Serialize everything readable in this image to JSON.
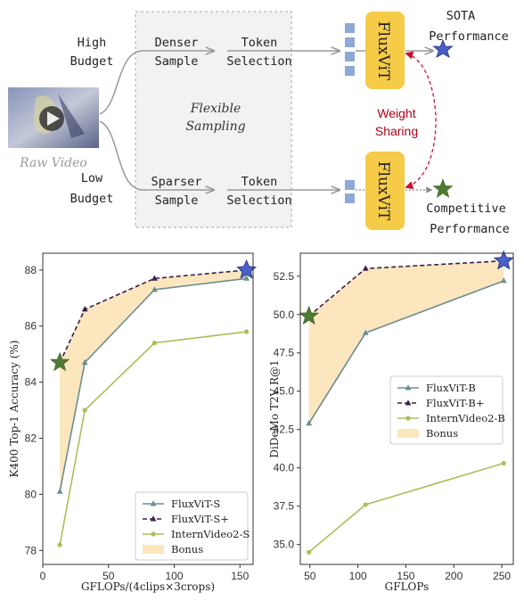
{
  "diagram": {
    "high_budget": [
      "High",
      "Budget"
    ],
    "low_budget": [
      "Low",
      "Budget"
    ],
    "raw_video": "Raw Video",
    "denser_sample": [
      "Denser",
      "Sample"
    ],
    "sparser_sample": [
      "Sparser",
      "Sample"
    ],
    "token_selection": [
      "Token",
      "Selection"
    ],
    "flexible_sampling": [
      "Flexible",
      "Sampling"
    ],
    "model_name": "FluxViT",
    "weight_sharing": [
      "Weight",
      "Sharing"
    ],
    "sota_performance": [
      "SOTA",
      "Performance"
    ],
    "competitive_performance": [
      "Competitive",
      "Performance"
    ],
    "colors": {
      "model_box": "#f5cb47",
      "token": "#8ea9d6",
      "sharing": "#c8102e",
      "sota_star": "#4a5fc8",
      "competitive_star": "#4f7a32"
    }
  },
  "chart_data": [
    {
      "type": "line",
      "xlabel": "GFLOPs/(4clips×3crops)",
      "ylabel": "K400 Top-1 Accuracy (%)",
      "xlim": [
        0,
        160
      ],
      "ylim": [
        77.5,
        88.6
      ],
      "xticks": [
        0,
        50,
        100,
        150
      ],
      "yticks": [
        78,
        80,
        82,
        84,
        86,
        88
      ],
      "legend_position": "bottom-right",
      "series": [
        {
          "name": "FluxViT-S",
          "x": [
            13,
            32,
            85,
            155
          ],
          "y": [
            80.1,
            84.7,
            87.3,
            87.7
          ],
          "color": "#6b8e8e",
          "marker": "triangle",
          "style": "solid"
        },
        {
          "name": "FluxViT-S+",
          "x": [
            13,
            32,
            85,
            155
          ],
          "y": [
            84.7,
            86.6,
            87.7,
            88.0
          ],
          "color": "#3b1f4e",
          "marker": "triangle",
          "style": "dashed"
        },
        {
          "name": "InternVideo2-S",
          "x": [
            13,
            32,
            85,
            155
          ],
          "y": [
            78.2,
            83.0,
            85.4,
            85.8
          ],
          "color": "#a8bf5a",
          "marker": "circle",
          "style": "solid"
        }
      ],
      "bonus": {
        "name": "Bonus",
        "color": "#fbe6bd"
      },
      "star_low": {
        "x": 13,
        "y": 84.7
      },
      "star_high": {
        "x": 155,
        "y": 88.0
      }
    },
    {
      "type": "line",
      "xlabel": "GFLOPs",
      "ylabel": "DiDeMo  T2V  R@1",
      "xlim": [
        40,
        262
      ],
      "ylim": [
        33.7,
        54.0
      ],
      "xticks": [
        50,
        100,
        150,
        200,
        250
      ],
      "yticks": [
        35.0,
        37.5,
        40.0,
        42.5,
        45.0,
        47.5,
        50.0,
        52.5
      ],
      "ytick_labels": [
        "35.0",
        "37.5",
        "40.0",
        "42.5",
        "45.0",
        "47.5",
        "50.0",
        "52.5"
      ],
      "legend_position": "center-right",
      "series": [
        {
          "name": "FluxViT-B",
          "x": [
            49,
            108,
            252
          ],
          "y": [
            42.9,
            48.8,
            52.2
          ],
          "color": "#6b8e8e",
          "marker": "triangle",
          "style": "solid"
        },
        {
          "name": "FluxViT-B+",
          "x": [
            49,
            108,
            252
          ],
          "y": [
            49.9,
            53.0,
            53.5
          ],
          "color": "#3b1f4e",
          "marker": "triangle",
          "style": "dashed"
        },
        {
          "name": "InternVideo2-B",
          "x": [
            49,
            108,
            252
          ],
          "y": [
            34.5,
            37.6,
            40.3
          ],
          "color": "#a8bf5a",
          "marker": "circle",
          "style": "solid"
        }
      ],
      "bonus": {
        "name": "Bonus",
        "color": "#fbe6bd"
      },
      "star_low": {
        "x": 49,
        "y": 49.9
      },
      "star_high": {
        "x": 252,
        "y": 53.5
      }
    }
  ]
}
